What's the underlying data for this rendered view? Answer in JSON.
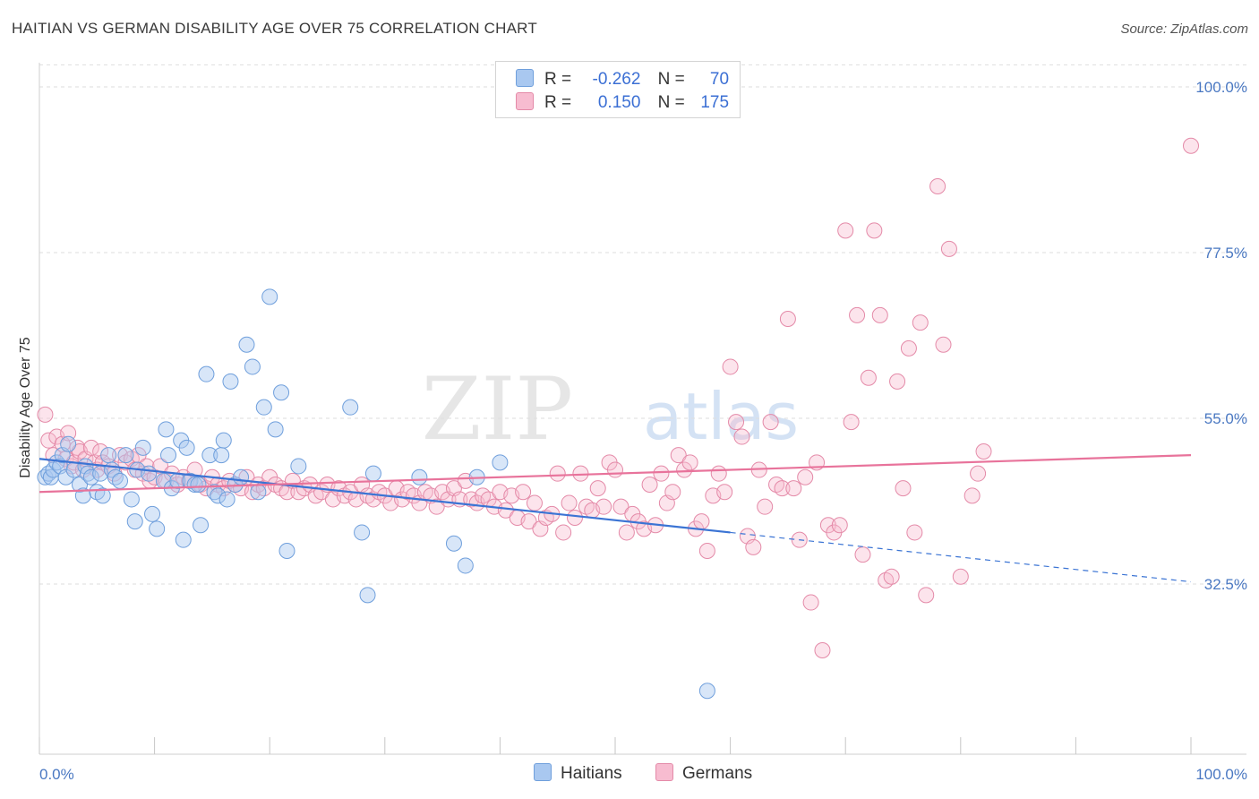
{
  "header": {
    "title": "HAITIAN VS GERMAN DISABILITY AGE OVER 75 CORRELATION CHART",
    "source": "Source: ZipAtlas.com"
  },
  "watermark": {
    "zip": "ZIP",
    "atlas": "atlas"
  },
  "legend": {
    "rows": [
      {
        "r_label": "R =",
        "r_value": "-0.262",
        "n_label": "N =",
        "n_value": "70",
        "color": "#a9c8f0",
        "border": "#6f9fdc"
      },
      {
        "r_label": "R =",
        "r_value": "0.150",
        "n_label": "N =",
        "n_value": "175",
        "color": "#f7bcd0",
        "border": "#e48aa8"
      }
    ]
  },
  "bottom_legend": {
    "items": [
      {
        "label": "Haitians",
        "color": "#a9c8f0",
        "border": "#6f9fdc"
      },
      {
        "label": "Germans",
        "color": "#f7bcd0",
        "border": "#e48aa8"
      }
    ]
  },
  "chart_data": {
    "type": "scatter",
    "xlabel": "",
    "ylabel": "Disability Age Over 75",
    "xlim": [
      0,
      100
    ],
    "ylim": [
      15,
      105
    ],
    "x_tick_labels": [
      "0.0%",
      "100.0%"
    ],
    "y_ticks": [
      32.5,
      55.0,
      77.5,
      100.0
    ],
    "y_tick_labels": [
      "32.5%",
      "55.0%",
      "77.5%",
      "100.0%"
    ],
    "grid": true,
    "colors": {
      "haitians": "#3b74d4",
      "germans": "#e8739b"
    },
    "series": [
      {
        "name": "Haitians",
        "trend": {
          "x": [
            0,
            60
          ],
          "y": [
            49.5,
            39.5
          ],
          "dashed_to": [
            100,
            32.8
          ]
        },
        "points": [
          [
            0.5,
            47
          ],
          [
            0.8,
            47.5
          ],
          [
            1,
            47
          ],
          [
            1.2,
            48
          ],
          [
            1.5,
            49
          ],
          [
            1.8,
            48.5
          ],
          [
            2,
            50
          ],
          [
            2.3,
            47
          ],
          [
            2.5,
            51.5
          ],
          [
            3,
            48
          ],
          [
            3.5,
            46
          ],
          [
            3.8,
            44.5
          ],
          [
            4,
            48.5
          ],
          [
            4.2,
            47.5
          ],
          [
            4.5,
            47
          ],
          [
            5,
            45
          ],
          [
            5.3,
            47.5
          ],
          [
            5.5,
            44.5
          ],
          [
            6,
            50
          ],
          [
            6.3,
            48
          ],
          [
            6.6,
            47
          ],
          [
            7,
            46.5
          ],
          [
            7.5,
            50
          ],
          [
            8,
            44
          ],
          [
            8.3,
            41
          ],
          [
            8.5,
            48
          ],
          [
            9,
            51
          ],
          [
            9.5,
            47.5
          ],
          [
            9.8,
            42
          ],
          [
            10.2,
            40
          ],
          [
            10.8,
            46.5
          ],
          [
            11,
            53.5
          ],
          [
            11.2,
            50
          ],
          [
            11.5,
            45.5
          ],
          [
            12,
            46.5
          ],
          [
            12.3,
            52
          ],
          [
            12.5,
            38.5
          ],
          [
            12.8,
            51
          ],
          [
            13.1,
            46.5
          ],
          [
            13.5,
            46
          ],
          [
            13.8,
            46
          ],
          [
            14,
            40.5
          ],
          [
            14.5,
            61
          ],
          [
            14.8,
            50
          ],
          [
            15.2,
            45
          ],
          [
            15.5,
            44.5
          ],
          [
            15.8,
            50
          ],
          [
            16,
            52
          ],
          [
            16.3,
            44
          ],
          [
            16.6,
            60
          ],
          [
            17,
            46
          ],
          [
            17.5,
            47
          ],
          [
            18,
            65
          ],
          [
            18.5,
            62
          ],
          [
            19,
            45
          ],
          [
            19.5,
            56.5
          ],
          [
            20,
            71.5
          ],
          [
            20.5,
            53.5
          ],
          [
            21,
            58.5
          ],
          [
            21.5,
            37
          ],
          [
            22.5,
            48.5
          ],
          [
            27,
            56.5
          ],
          [
            28,
            39.5
          ],
          [
            28.5,
            31
          ],
          [
            29,
            47.5
          ],
          [
            33,
            47
          ],
          [
            36,
            38
          ],
          [
            37,
            35
          ],
          [
            38,
            47
          ],
          [
            40,
            49
          ],
          [
            58,
            18
          ]
        ]
      },
      {
        "name": "Germans",
        "trend": {
          "x": [
            0,
            100
          ],
          "y": [
            45,
            50
          ]
        },
        "points": [
          [
            0.5,
            55.5
          ],
          [
            0.8,
            52
          ],
          [
            1.2,
            50
          ],
          [
            1.5,
            52.5
          ],
          [
            2,
            51.5
          ],
          [
            2.3,
            49.5
          ],
          [
            2.5,
            53
          ],
          [
            2.8,
            48.5
          ],
          [
            3,
            49
          ],
          [
            3.3,
            51
          ],
          [
            3.5,
            50.5
          ],
          [
            3.8,
            48
          ],
          [
            4,
            49.5
          ],
          [
            4.5,
            51
          ],
          [
            4.8,
            49
          ],
          [
            5,
            48
          ],
          [
            5.3,
            50.5
          ],
          [
            5.5,
            49
          ],
          [
            6,
            48.5
          ],
          [
            6.5,
            47.5
          ],
          [
            7,
            50
          ],
          [
            7.5,
            49
          ],
          [
            8,
            49.5
          ],
          [
            8.3,
            48
          ],
          [
            8.6,
            50
          ],
          [
            9,
            47.5
          ],
          [
            9.3,
            48.5
          ],
          [
            9.6,
            46.5
          ],
          [
            10,
            47
          ],
          [
            10.5,
            48.5
          ],
          [
            11,
            46.5
          ],
          [
            11.5,
            47.5
          ],
          [
            12,
            46
          ],
          [
            12.5,
            47
          ],
          [
            13,
            46.5
          ],
          [
            13.5,
            48
          ],
          [
            14,
            46
          ],
          [
            14.5,
            45.5
          ],
          [
            15,
            47
          ],
          [
            15.5,
            46
          ],
          [
            16,
            45.5
          ],
          [
            16.5,
            46.5
          ],
          [
            17,
            46
          ],
          [
            17.5,
            45.5
          ],
          [
            18,
            47
          ],
          [
            18.5,
            45
          ],
          [
            19,
            46
          ],
          [
            19.5,
            45.5
          ],
          [
            20,
            47
          ],
          [
            20.5,
            46
          ],
          [
            21,
            45.5
          ],
          [
            21.5,
            45
          ],
          [
            22,
            46.5
          ],
          [
            22.5,
            45
          ],
          [
            23,
            45.5
          ],
          [
            23.5,
            46
          ],
          [
            24,
            44.5
          ],
          [
            24.5,
            45
          ],
          [
            25,
            46
          ],
          [
            25.5,
            44
          ],
          [
            26,
            45.5
          ],
          [
            26.5,
            44.5
          ],
          [
            27,
            45
          ],
          [
            27.5,
            44
          ],
          [
            28,
            46
          ],
          [
            28.5,
            44.5
          ],
          [
            29,
            44
          ],
          [
            29.5,
            45
          ],
          [
            30,
            44.5
          ],
          [
            30.5,
            43.5
          ],
          [
            31,
            45.5
          ],
          [
            31.5,
            44
          ],
          [
            32,
            45
          ],
          [
            32.5,
            44.5
          ],
          [
            33,
            43.5
          ],
          [
            33.5,
            45
          ],
          [
            34,
            44.5
          ],
          [
            34.5,
            43
          ],
          [
            35,
            45
          ],
          [
            35.5,
            44
          ],
          [
            36,
            45.5
          ],
          [
            36.5,
            44
          ],
          [
            37,
            46.5
          ],
          [
            37.5,
            44
          ],
          [
            38,
            43.5
          ],
          [
            38.5,
            44.5
          ],
          [
            39,
            44
          ],
          [
            39.5,
            43
          ],
          [
            40,
            45
          ],
          [
            40.5,
            42.5
          ],
          [
            41,
            44.5
          ],
          [
            41.5,
            41.5
          ],
          [
            42,
            45
          ],
          [
            42.5,
            41
          ],
          [
            43,
            43.5
          ],
          [
            43.5,
            40
          ],
          [
            44,
            41.5
          ],
          [
            44.5,
            42
          ],
          [
            45,
            47.5
          ],
          [
            45.5,
            39.5
          ],
          [
            46,
            43.5
          ],
          [
            46.5,
            41.5
          ],
          [
            47,
            47.5
          ],
          [
            47.5,
            43
          ],
          [
            48,
            42.5
          ],
          [
            48.5,
            45.5
          ],
          [
            49,
            43
          ],
          [
            49.5,
            49
          ],
          [
            50,
            48
          ],
          [
            50.5,
            43
          ],
          [
            51,
            39.5
          ],
          [
            51.5,
            42
          ],
          [
            52,
            41
          ],
          [
            52.5,
            40
          ],
          [
            53,
            46
          ],
          [
            53.5,
            40.5
          ],
          [
            54,
            47.5
          ],
          [
            54.5,
            43.5
          ],
          [
            55,
            45
          ],
          [
            55.5,
            50
          ],
          [
            56,
            48
          ],
          [
            56.5,
            49
          ],
          [
            57,
            40
          ],
          [
            57.5,
            41
          ],
          [
            58,
            37
          ],
          [
            58.5,
            44.5
          ],
          [
            59,
            47.5
          ],
          [
            59.5,
            45
          ],
          [
            60,
            62
          ],
          [
            60.5,
            54.5
          ],
          [
            61,
            52.5
          ],
          [
            61.5,
            39
          ],
          [
            62,
            37.5
          ],
          [
            62.5,
            48
          ],
          [
            63,
            43
          ],
          [
            63.5,
            54.5
          ],
          [
            64,
            46
          ],
          [
            64.5,
            45.5
          ],
          [
            65,
            68.5
          ],
          [
            65.5,
            45.5
          ],
          [
            66,
            38.5
          ],
          [
            66.5,
            47
          ],
          [
            67,
            30
          ],
          [
            67.5,
            49
          ],
          [
            68,
            23.5
          ],
          [
            68.5,
            40.5
          ],
          [
            69,
            39.5
          ],
          [
            69.5,
            40.5
          ],
          [
            70,
            80.5
          ],
          [
            70.5,
            54.5
          ],
          [
            71,
            69
          ],
          [
            71.5,
            36.5
          ],
          [
            72,
            60.5
          ],
          [
            72.5,
            80.5
          ],
          [
            73,
            69
          ],
          [
            73.5,
            33
          ],
          [
            74,
            33.5
          ],
          [
            74.5,
            60
          ],
          [
            75,
            45.5
          ],
          [
            75.5,
            64.5
          ],
          [
            76,
            39.5
          ],
          [
            76.5,
            68
          ],
          [
            77,
            31
          ],
          [
            78,
            86.5
          ],
          [
            78.5,
            65
          ],
          [
            79,
            78
          ],
          [
            80,
            33.5
          ],
          [
            81,
            44.5
          ],
          [
            81.5,
            47.5
          ],
          [
            82,
            50.5
          ],
          [
            100,
            92
          ]
        ]
      }
    ]
  }
}
